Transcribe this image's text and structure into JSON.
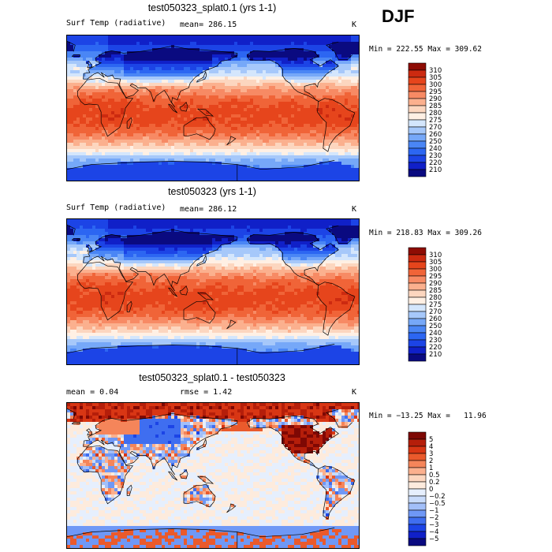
{
  "season": "DJF",
  "panels": [
    {
      "title": "test050323_splat0.1 (yrs 1-1)",
      "field": "Surf Temp (radiative)",
      "stat_left": "mean=  286.15",
      "stat_right": "",
      "units": "K",
      "minmax": "Min = 222.55 Max = 309.62",
      "kind": "temp"
    },
    {
      "title": "test050323 (yrs 1-1)",
      "field": "Surf Temp (radiative)",
      "stat_left": "mean=  286.12",
      "stat_right": "",
      "units": "K",
      "minmax": "Min = 218.83 Max = 309.26",
      "kind": "temp"
    },
    {
      "title": "test050323_splat0.1 - test050323",
      "field": "mean =    0.04",
      "stat_left": "",
      "stat_right": "rmse =    1.42",
      "units": "K",
      "minmax": "Min = −13.25 Max =   11.96",
      "kind": "diff"
    }
  ],
  "chart_data": [
    {
      "type": "heatmap",
      "title": "test050323_splat0.1 (yrs 1-1)",
      "variable": "Surf Temp (radiative)",
      "units": "K",
      "mean": 286.15,
      "min": 222.55,
      "max": 309.62,
      "colorbar_levels": [
        210,
        220,
        230,
        240,
        250,
        260,
        270,
        275,
        280,
        285,
        290,
        295,
        300,
        305,
        310
      ]
    },
    {
      "type": "heatmap",
      "title": "test050323 (yrs 1-1)",
      "variable": "Surf Temp (radiative)",
      "units": "K",
      "mean": 286.12,
      "min": 218.83,
      "max": 309.26,
      "colorbar_levels": [
        210,
        220,
        230,
        240,
        250,
        260,
        270,
        275,
        280,
        285,
        290,
        295,
        300,
        305,
        310
      ]
    },
    {
      "type": "heatmap",
      "title": "test050323_splat0.1 - test050323",
      "units": "K",
      "mean": 0.04,
      "rmse": 1.42,
      "min": -13.25,
      "max": 11.96,
      "colorbar_levels": [
        "5",
        "4",
        "3",
        "2",
        "1",
        "0.5",
        "0.2",
        "0",
        "−0.2",
        "−0.5",
        "−1",
        "−2",
        "−3",
        "−4",
        "−5"
      ]
    }
  ],
  "colors": {
    "temp_scale": [
      "#0a0a80",
      "#1020c8",
      "#1c44e6",
      "#2c66f2",
      "#4a86f5",
      "#76a8f8",
      "#a6c8fa",
      "#d4e6fc",
      "#fff0e4",
      "#fcd6bf",
      "#fbb08e",
      "#f78a64",
      "#f06438",
      "#e6451c",
      "#cc2a10",
      "#8e0c04"
    ],
    "diff_scale": [
      "#0a0a80",
      "#1020c8",
      "#1c44e6",
      "#3f6ef0",
      "#6f98f6",
      "#a2bff9",
      "#c8dbfb",
      "#e6effd",
      "#fdebdd",
      "#fcd6bf",
      "#fbb08e",
      "#f5855a",
      "#ea5a2c",
      "#d83614",
      "#b51e0a",
      "#7e0804"
    ]
  }
}
